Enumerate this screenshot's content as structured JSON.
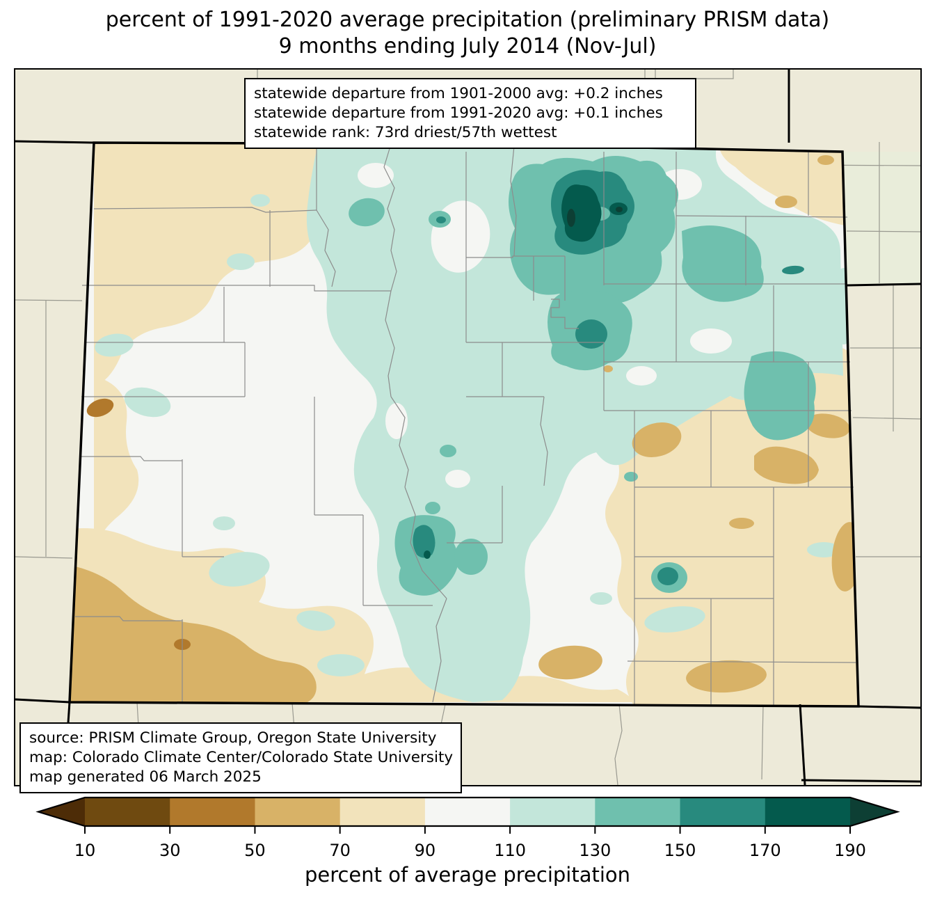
{
  "title": {
    "line1": "percent of 1991-2020 average precipitation (preliminary PRISM data)",
    "line2": "9 months ending July 2014 (Nov-Jul)"
  },
  "stats_box": {
    "line1": "statewide departure from 1901-2000 avg: +0.2 inches",
    "line2": "statewide departure from 1991-2020 avg: +0.1 inches",
    "line3": "statewide rank: 73rd driest/57th wettest"
  },
  "credits_box": {
    "line1": "source: PRISM Climate Group, Oregon State University",
    "line2": "map: Colorado Climate Center/Colorado State University",
    "line3": "map generated 06 March 2025"
  },
  "colorbar": {
    "label": "percent of average precipitation",
    "ticks": [
      "10",
      "30",
      "50",
      "70",
      "90",
      "110",
      "130",
      "150",
      "170",
      "190"
    ],
    "segments": [
      {
        "range": "<10",
        "color": "#4d2c07"
      },
      {
        "range": "10-30",
        "color": "#6f4a10"
      },
      {
        "range": "30-50",
        "color": "#b1792c"
      },
      {
        "range": "50-70",
        "color": "#d8b267"
      },
      {
        "range": "70-90",
        "color": "#f2e3bb"
      },
      {
        "range": "90-110",
        "color": "#f5f6f3"
      },
      {
        "range": "110-130",
        "color": "#c3e6da"
      },
      {
        "range": "130-150",
        "color": "#6fc0ae"
      },
      {
        "range": "150-170",
        "color": "#288a7e"
      },
      {
        "range": "170-190",
        "color": "#045a4d"
      },
      {
        "range": ">190",
        "color": "#0d3f34"
      }
    ]
  },
  "map_colors": {
    "background_outside_state": "#edead9",
    "near_average_fill": "#f5f6f3",
    "county_line": "#8c8c8c",
    "state_border": "#000000"
  }
}
